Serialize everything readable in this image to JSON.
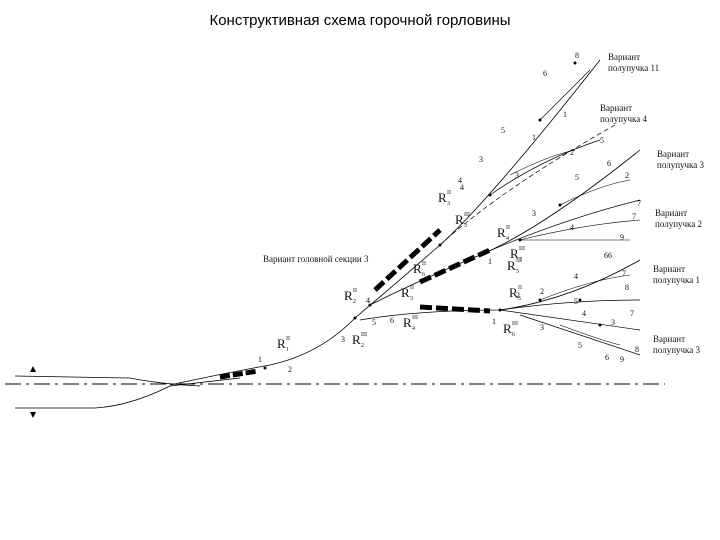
{
  "title": "Конструктивная схема горочной горловины",
  "variants": [
    {
      "line1": "Вариант",
      "line2": "полупучка 11"
    },
    {
      "line1": "Вариант",
      "line2": "полупучка 4"
    },
    {
      "line1": "Вариант",
      "line2": "полупучка 3"
    },
    {
      "line1": "Вариант",
      "line2": "полупучка 2"
    },
    {
      "line1": "Вариант",
      "line2": "полупучка 1"
    },
    {
      "line1": "Вариант",
      "line2": "полупучка 3"
    }
  ],
  "head_zone_label": "Вариант головной секции 3",
  "retarders": [
    {
      "base": "R",
      "sub": "1",
      "sup": "II"
    },
    {
      "base": "R",
      "sub": "2",
      "sup": "II"
    },
    {
      "base": "R",
      "sub": "3",
      "sup": "II"
    },
    {
      "base": "R",
      "sub": "2",
      "sup": "III"
    },
    {
      "base": "R",
      "sub": "3",
      "sup": "III"
    },
    {
      "base": "R",
      "sub": "3",
      "sup": "II"
    },
    {
      "base": "R",
      "sub": "4",
      "sup": "III"
    },
    {
      "base": "R",
      "sub": "4",
      "sup": "II"
    },
    {
      "base": "R",
      "sub": "5",
      "sup": "III"
    },
    {
      "base": "R",
      "sub": "5",
      "sup": "II"
    },
    {
      "base": "R",
      "sub": "6",
      "sup": "III"
    },
    {
      "base": "R",
      "sub": "6",
      "sup": "II"
    },
    {
      "base": "R",
      "sub": "7",
      "sup": "III"
    }
  ],
  "switch_numbers": [
    "1",
    "2",
    "3",
    "4",
    "5",
    "6",
    "3",
    "4",
    "5",
    "6",
    "1",
    "2",
    "3",
    "4",
    "5",
    "6",
    "7",
    "8",
    "9",
    "1",
    "2",
    "3",
    "4",
    "5",
    "6",
    "7",
    "1",
    "2",
    "3",
    "4",
    "5",
    "6",
    "7",
    "8",
    "1",
    "2",
    "3",
    "4",
    "5",
    "6",
    "7",
    "8",
    "9"
  ]
}
